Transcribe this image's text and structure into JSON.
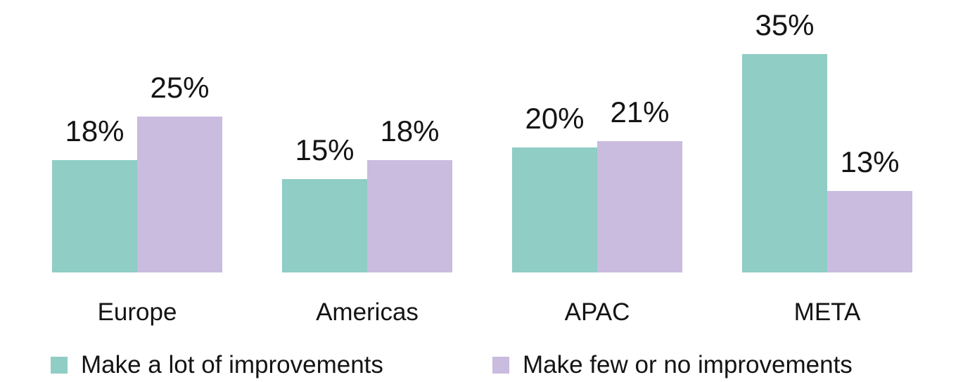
{
  "chart_data": {
    "type": "bar",
    "categories": [
      "Europe",
      "Americas",
      "APAC",
      "META"
    ],
    "series": [
      {
        "name": "Make a lot of improvements",
        "color": "#8FCDC5",
        "values": [
          18,
          15,
          20,
          35
        ]
      },
      {
        "name": "Make few or no improvements",
        "color": "#C9BCDF",
        "values": [
          25,
          18,
          21,
          13
        ]
      }
    ],
    "value_suffix": "%",
    "title": "",
    "xlabel": "",
    "ylabel": "",
    "ylim": [
      0,
      40
    ],
    "grid": false,
    "axes_visible": false,
    "data_labels": true,
    "legend_position": "bottom",
    "text_color": "#141414",
    "background_color": "#FFFFFF"
  }
}
